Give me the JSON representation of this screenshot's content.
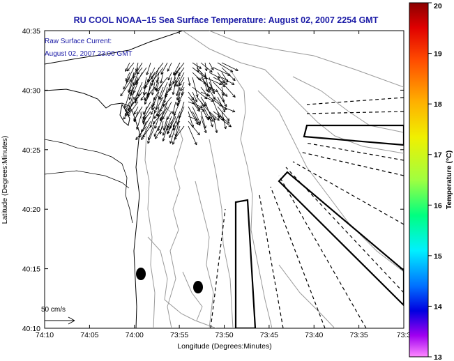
{
  "title": "RU COOL  NOAA–15  Sea Surface Temperature:  August 02, 2007 2254 GMT",
  "annotation": {
    "line1": "Raw Surface Current:",
    "line2": "August 02, 2007 23:00 GMT"
  },
  "scale_label": "50 cm/s",
  "axes": {
    "xlabel": "Longitude (Degrees:Minutes)",
    "ylabel": "Latitude (Degrees:Minutes)",
    "x_ticks": [
      "74:10",
      "74:05",
      "74:00",
      "73:55",
      "73:50",
      "73:45",
      "73:40",
      "73:35",
      "73:3"
    ],
    "y_ticks": [
      "40:35",
      "40:30",
      "40:25",
      "40:20",
      "40:15",
      "40:10"
    ]
  },
  "colorbar": {
    "label": "Temperature (°C)",
    "ticks": [
      "20",
      "19",
      "18",
      "17",
      "16",
      "15",
      "14",
      "13"
    ],
    "min": 13,
    "max": 20
  },
  "colors": {
    "title": "#1a1aa6",
    "annotation": "#1a1aa6",
    "contour": "#9a9a9a",
    "coast": "#000000"
  },
  "markers": [
    {
      "name": "station-marker-1",
      "lon": "74:01",
      "lat": "40:14.6"
    },
    {
      "name": "station-marker-2",
      "lon": "73:56",
      "lat": "40:13.5"
    }
  ]
}
